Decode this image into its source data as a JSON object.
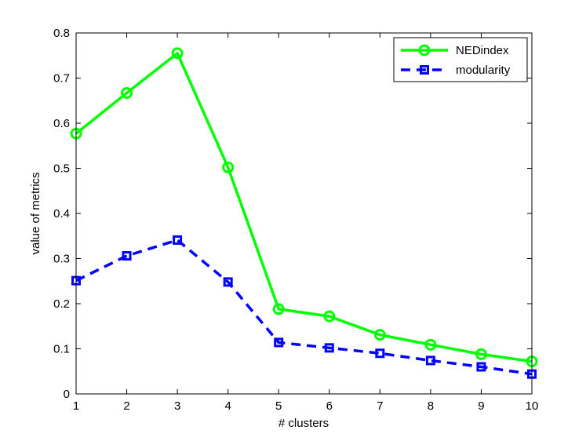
{
  "chart_data": {
    "type": "line",
    "title": "",
    "xlabel": "# clusters",
    "ylabel": "value of metrics",
    "xlim": [
      1,
      10
    ],
    "ylim": [
      0,
      0.8
    ],
    "xticks": [
      "1",
      "2",
      "3",
      "4",
      "5",
      "6",
      "7",
      "8",
      "9",
      "10"
    ],
    "yticks": [
      "0",
      "0.1",
      "0.2",
      "0.3",
      "0.4",
      "0.5",
      "0.6",
      "0.7",
      "0.8"
    ],
    "grid": false,
    "legend_position": "top-right",
    "x": [
      1,
      2,
      3,
      4,
      5,
      6,
      7,
      8,
      9,
      10
    ],
    "series": [
      {
        "name": "NEDindex",
        "color": "#00ff00",
        "line_style": "solid",
        "marker": "circle",
        "values": [
          0.577,
          0.667,
          0.755,
          0.502,
          0.188,
          0.172,
          0.131,
          0.109,
          0.088,
          0.072
        ]
      },
      {
        "name": "modularity",
        "color": "#0000ff",
        "line_style": "dashed",
        "marker": "square",
        "values": [
          0.251,
          0.306,
          0.341,
          0.248,
          0.114,
          0.102,
          0.09,
          0.074,
          0.06,
          0.044
        ]
      }
    ]
  }
}
